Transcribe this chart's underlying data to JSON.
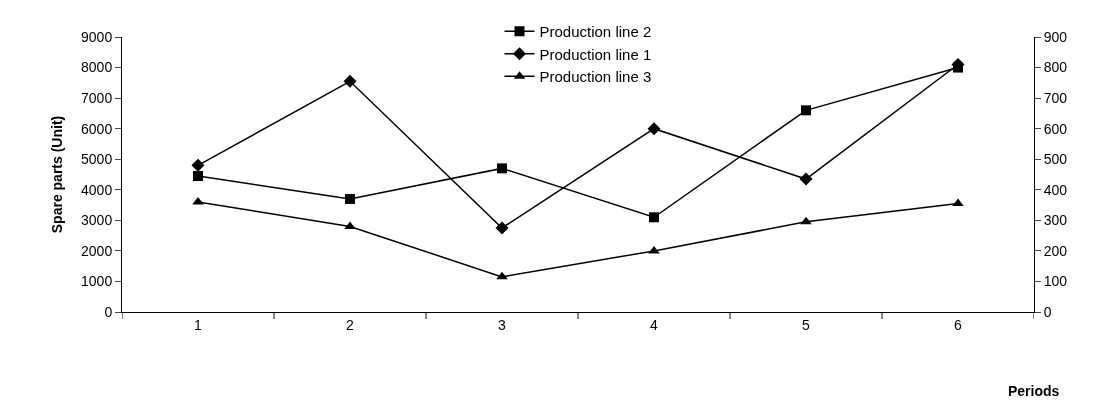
{
  "chart_data": {
    "type": "line",
    "xlabel": "Periods",
    "ylabel": "Spare parts (Unit)",
    "categories": [
      "1",
      "2",
      "3",
      "4",
      "5",
      "6"
    ],
    "series": [
      {
        "name": "Production line 2",
        "color": "#000000",
        "marker": "square",
        "values": [
          4450,
          3700,
          4700,
          3100,
          6600,
          8000
        ]
      },
      {
        "name": "Production line 1",
        "color": "#000000",
        "marker": "diamond",
        "values": [
          4800,
          7550,
          2750,
          6000,
          4350,
          8100
        ]
      },
      {
        "name": "Production line 3",
        "color": "#000000",
        "marker": "triangle",
        "axis": "y2",
        "values": [
          360,
          280,
          115,
          200,
          295,
          355
        ]
      }
    ],
    "ylim": [
      0,
      9000
    ],
    "yticks": [
      0,
      1000,
      2000,
      3000,
      4000,
      5000,
      6000,
      7000,
      8000,
      9000
    ],
    "y2lim": [
      0,
      900
    ],
    "y2ticks": [
      0,
      100,
      200,
      300,
      400,
      500,
      600,
      700,
      800,
      900
    ],
    "legend": "top",
    "line_style": "solid"
  }
}
